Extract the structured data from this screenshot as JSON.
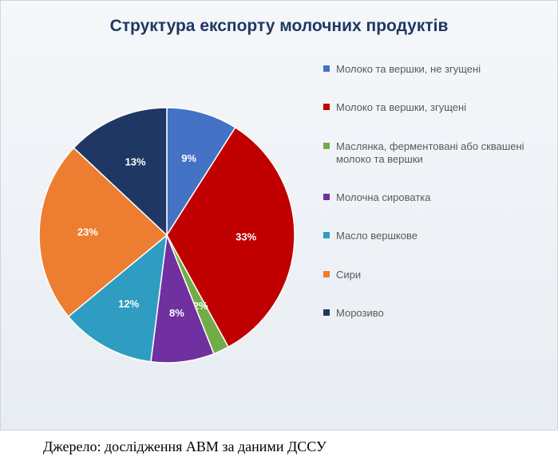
{
  "chart": {
    "type": "pie",
    "title": "Структура експорту молочних продуктів",
    "title_color": "#1f3863",
    "title_fontsize": 21,
    "background_gradient": [
      "#f5f7fa",
      "#e8edf3"
    ],
    "border_color": "#d0d5de",
    "radius": 160,
    "start_angle_deg": -90,
    "label_color": "#ffffff",
    "label_fontsize": 13,
    "legend_fontsize": 13,
    "legend_color": "#595959",
    "slices": [
      {
        "label": "Молоко та вершки, не згущені",
        "value": 9,
        "color": "#4472c4",
        "percent_label": "9%"
      },
      {
        "label": "Молоко та вершки, згущені",
        "value": 33,
        "color": "#c00000",
        "percent_label": "33%"
      },
      {
        "label": "Маслянка, ферментовані або сквашені молоко та вершки",
        "value": 2,
        "color": "#70ad47",
        "percent_label": "2%"
      },
      {
        "label": "Молочна сироватка",
        "value": 8,
        "color": "#7030a0",
        "percent_label": "8%"
      },
      {
        "label": "Масло вершкове",
        "value": 12,
        "color": "#2e9dc1",
        "percent_label": "12%"
      },
      {
        "label": "Сири",
        "value": 23,
        "color": "#ed7d31",
        "percent_label": "23%"
      },
      {
        "label": "Морозиво",
        "value": 13,
        "color": "#1f3863",
        "percent_label": "13%"
      }
    ]
  },
  "source": "Джерело: дослідження АВМ за даними ДССУ",
  "source_fontsize": 18,
  "source_color": "#000000"
}
